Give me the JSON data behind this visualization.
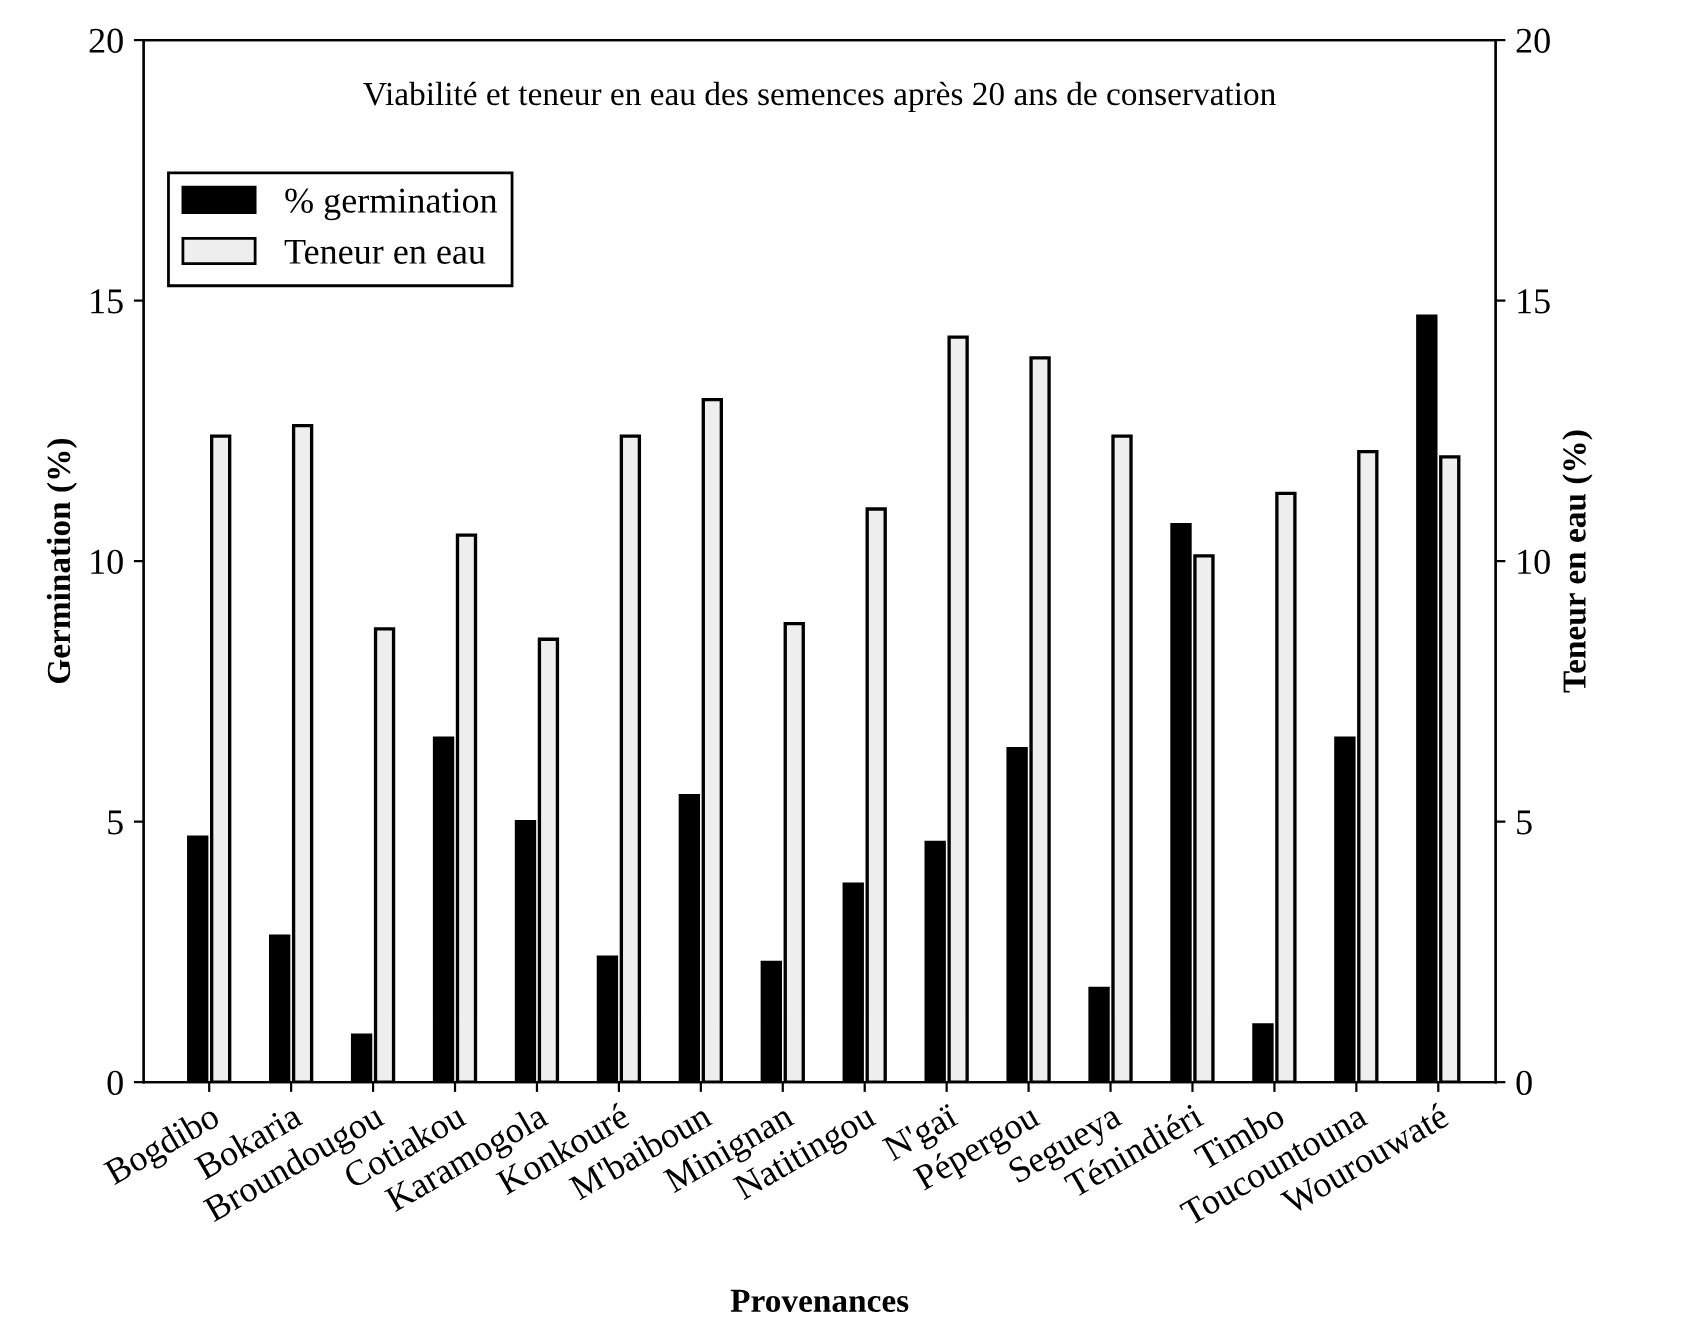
{
  "chart_data": {
    "type": "bar",
    "title": "Viabilité et teneur en eau des semences après 20 ans de conservation",
    "xlabel": "Provenances",
    "ylabel": "Germination (%)",
    "y2label": "Teneur en eau (%)",
    "categories": [
      "Bogdibo",
      "Bokaria",
      "Broundougou",
      "Cotiakou",
      "Karamogola",
      "Konkouré",
      "M'baiboun",
      "Minignan",
      "Natitingou",
      "N'gaï",
      "Pépergou",
      "Segueya",
      "Ténindiéri",
      "Timbo",
      "Toucountouna",
      "Wourouwaté"
    ],
    "series": [
      {
        "name": "% germination",
        "color": "#000000",
        "values": [
          4.7,
          2.8,
          0.9,
          6.6,
          5.0,
          2.4,
          5.5,
          2.3,
          3.8,
          4.6,
          6.4,
          1.8,
          10.7,
          1.1,
          6.6,
          14.7
        ]
      },
      {
        "name": "Teneur en eau",
        "color": "#eeeeee",
        "axis": "y2",
        "values": [
          12.4,
          12.6,
          8.7,
          10.5,
          8.5,
          12.4,
          13.1,
          8.8,
          11.0,
          14.3,
          13.9,
          12.4,
          10.1,
          11.3,
          12.1,
          12.0
        ]
      }
    ],
    "ylim": [
      0,
      20
    ],
    "yticks": [
      0,
      5,
      10,
      15,
      20
    ],
    "y2lim": [
      0,
      20
    ],
    "y2ticks": [
      0,
      5,
      10,
      15,
      20
    ],
    "legend": "top left",
    "grid": false
  }
}
